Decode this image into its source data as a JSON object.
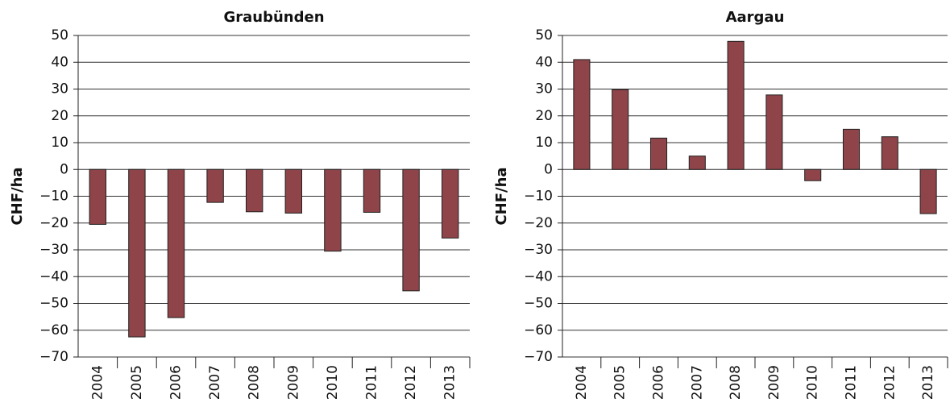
{
  "chart_data": [
    {
      "type": "bar",
      "title": "Graubünden",
      "ylabel": "CHF/ha",
      "color": "#8e4448",
      "grid": true,
      "categories": [
        "2004",
        "2005",
        "2006",
        "2007",
        "2008",
        "2009",
        "2010",
        "2011",
        "2012",
        "2013"
      ],
      "values": [
        -20.5,
        -62.5,
        -55.3,
        -12.3,
        -15.8,
        -16.3,
        -30.5,
        -16,
        -45.3,
        -25.6
      ],
      "ylim": [
        -70,
        50
      ],
      "yticks": [
        {
          "value": -70,
          "label": "−70"
        },
        {
          "value": -60,
          "label": "−60"
        },
        {
          "value": -50,
          "label": "−50"
        },
        {
          "value": -40,
          "label": "−40"
        },
        {
          "value": -30,
          "label": "−30"
        },
        {
          "value": -20,
          "label": "−20"
        },
        {
          "value": -10,
          "label": "−10"
        },
        0,
        10,
        20,
        30,
        40,
        50
      ]
    },
    {
      "type": "bar",
      "title": "Aargau",
      "ylabel": "CHF/ha",
      "color": "#8e4448",
      "grid": true,
      "categories": [
        "2004",
        "2005",
        "2006",
        "2007",
        "2008",
        "2009",
        "2010",
        "2011",
        "2012",
        "2013"
      ],
      "values": [
        41,
        29.8,
        11.7,
        5,
        47.8,
        27.8,
        -4.2,
        15,
        12.2,
        -16.5
      ],
      "ylim": [
        -70,
        50
      ],
      "yticks": [
        {
          "value": -70,
          "label": "−70"
        },
        {
          "value": -60,
          "label": "−60"
        },
        {
          "value": -50,
          "label": "−50"
        },
        {
          "value": -40,
          "label": "−40"
        },
        {
          "value": -30,
          "label": "−30"
        },
        {
          "value": -20,
          "label": "−20"
        },
        {
          "value": -10,
          "label": "−10"
        },
        0,
        10,
        20,
        30,
        40,
        50
      ]
    }
  ]
}
